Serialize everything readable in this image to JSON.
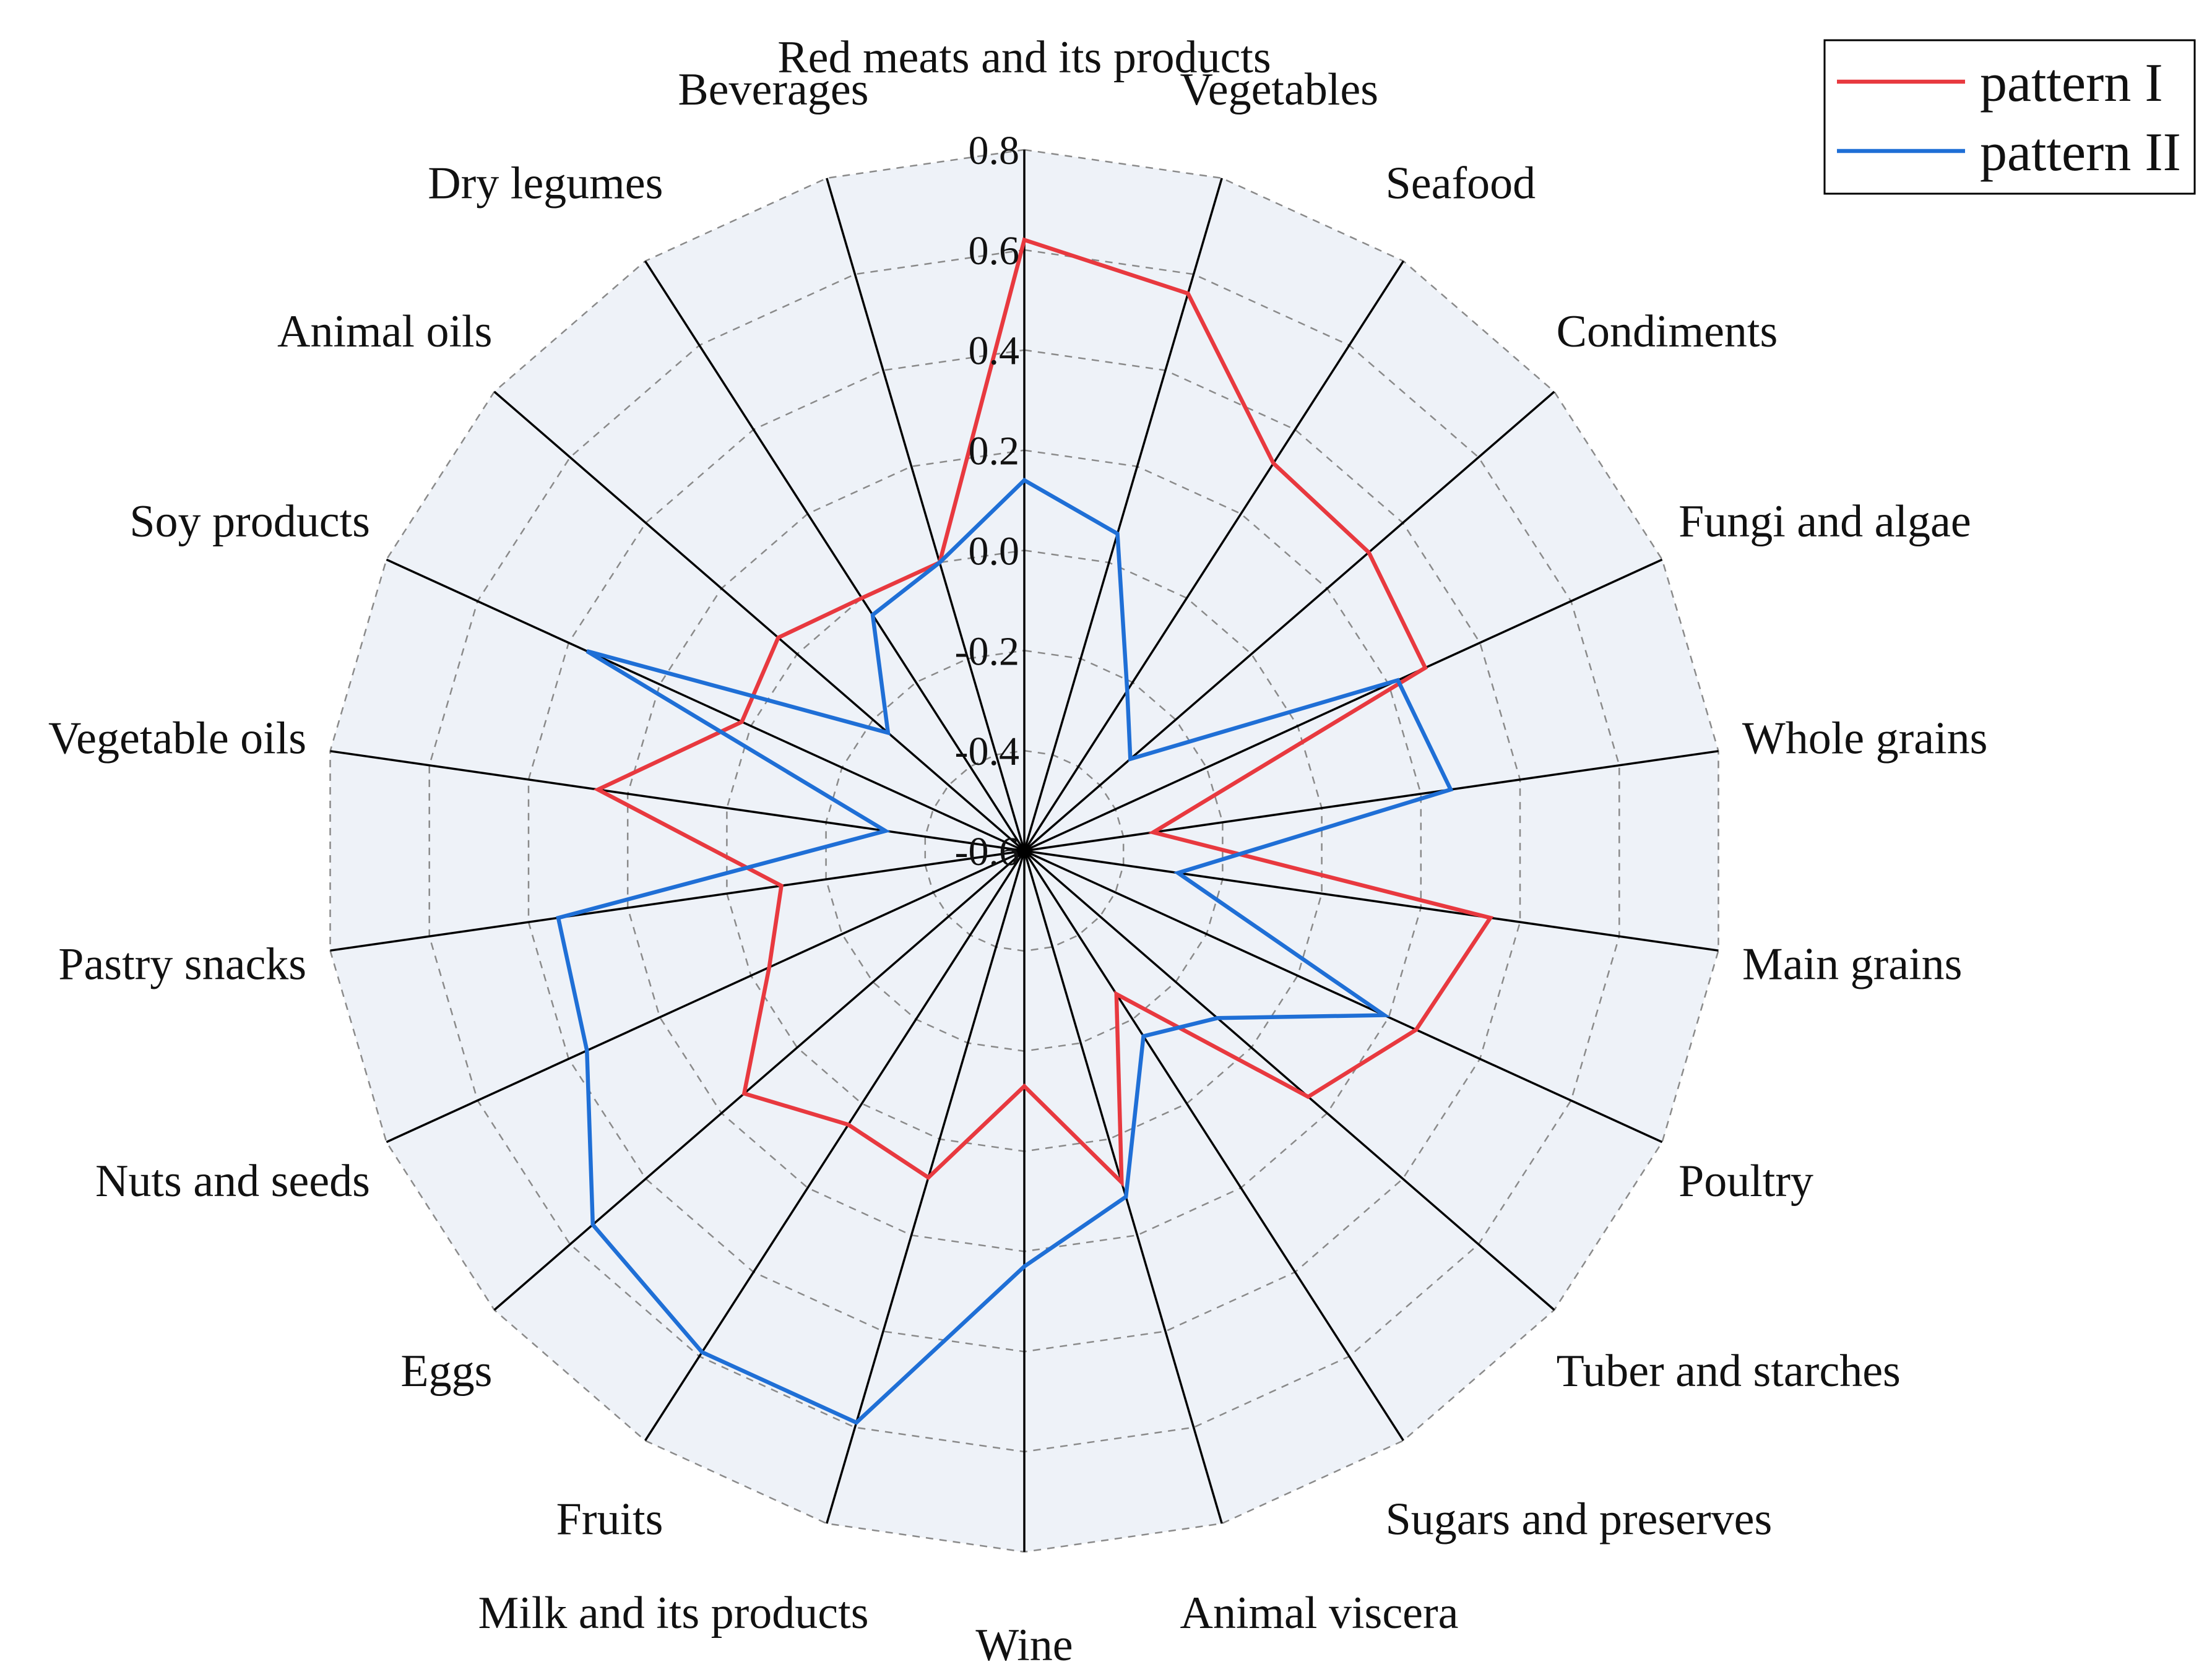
{
  "chart_data": {
    "type": "radar",
    "axis_range": [
      -0.6,
      0.8
    ],
    "ticks": [
      "0.8",
      "0.6",
      "0.4",
      "0.2",
      "0.0",
      "-0.2",
      "-0.4",
      "-0.6"
    ],
    "categories": [
      "Red meats and its products",
      "Vegetables",
      "Seafood",
      "Condiments",
      "Fungi and algae",
      "Whole grains",
      "Main grains",
      "Poultry",
      "Tuber and starches",
      "Sugars and preserves",
      "Animal viscera",
      "Wine",
      "Milk and its products",
      "Fruits",
      "Eggs",
      "Nuts and seeds",
      "Pastry snacks",
      "Vegetable oils",
      "Soy products",
      "Animal oils",
      "Dry legumes",
      "Beverages"
    ],
    "series": [
      {
        "name": "pattern I",
        "color": "#e8393f",
        "values": [
          0.62,
          0.56,
          0.32,
          0.31,
          0.28,
          -0.34,
          0.34,
          0.26,
          0.15,
          -0.26,
          0.09,
          -0.13,
          0.08,
          0.05,
          0.14,
          -0.04,
          -0.11,
          0.26,
          0.02,
          0.05,
          0.0,
          0.0
        ]
      },
      {
        "name": "pattern II",
        "color": "#1f6fd6",
        "values": [
          0.14,
          0.06,
          -0.22,
          -0.32,
          0.22,
          0.26,
          -0.29,
          0.19,
          -0.09,
          -0.16,
          0.12,
          0.23,
          0.59,
          0.59,
          0.54,
          0.36,
          0.34,
          -0.32,
          0.36,
          -0.24,
          -0.04,
          0.0
        ]
      }
    ],
    "legend": {
      "position": "top-right",
      "entries": [
        "pattern I",
        "pattern II"
      ]
    }
  }
}
